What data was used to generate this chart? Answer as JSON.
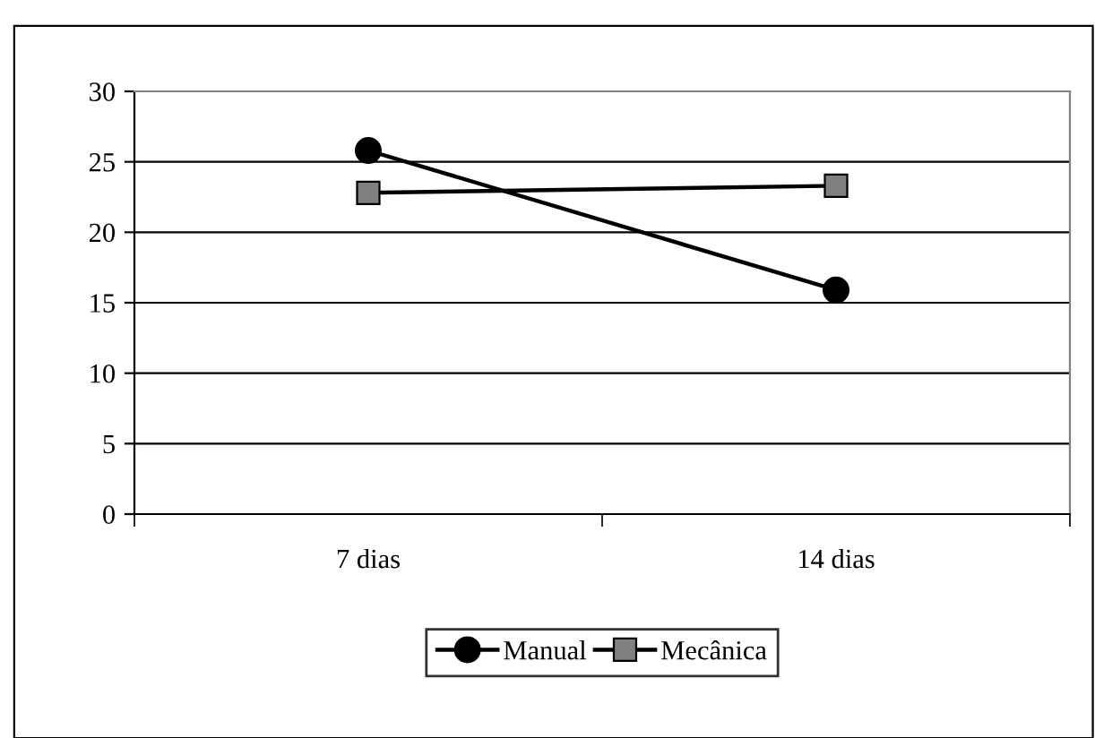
{
  "chart_data": {
    "type": "line",
    "categories": [
      "7 dias",
      "14 dias"
    ],
    "series": [
      {
        "name": "Manual",
        "color": "#000000",
        "marker": "circle",
        "values": [
          25.8,
          15.9
        ]
      },
      {
        "name": "Mecânica",
        "color": "#808080",
        "marker": "square",
        "values": [
          22.8,
          23.3
        ]
      }
    ],
    "ylim": [
      0,
      30
    ],
    "yticks": [
      0,
      5,
      10,
      15,
      20,
      25,
      30
    ],
    "grid": "y",
    "legend": "bottom",
    "line_style": "solid"
  }
}
